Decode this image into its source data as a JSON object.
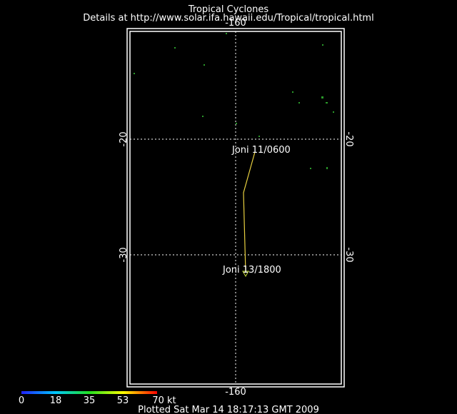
{
  "header": {
    "title": "Tropical Cyclones",
    "subtitle": "Details at http://www.solar.ifa.hawaii.edu/Tropical/tropical.html"
  },
  "grid": {
    "lon_labels": [
      "-160",
      "-160"
    ],
    "lat_labels": [
      "-20",
      "-30",
      "-20",
      "-30"
    ]
  },
  "storm": {
    "labels": [
      "Joni  11/0600",
      "Joni  13/1800"
    ]
  },
  "colorbar": {
    "labels": [
      "0",
      "18",
      "35",
      "53",
      "70 kt"
    ]
  },
  "footer": "Plotted Sat Mar 14 18:17:13 GMT 2009"
}
